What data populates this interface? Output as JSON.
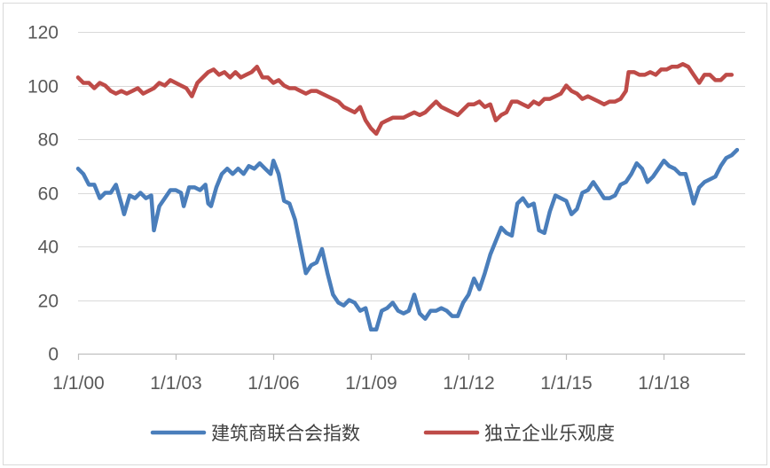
{
  "chart_data": {
    "type": "line",
    "title": "",
    "xlabel": "",
    "ylabel": "",
    "ylim": [
      0,
      120
    ],
    "yticks": [
      0,
      20,
      40,
      60,
      80,
      100,
      120
    ],
    "xlim": [
      "2000-01-01",
      "2020-07-01"
    ],
    "xtick_labels": [
      "1/1/00",
      "1/1/03",
      "1/1/06",
      "1/1/09",
      "1/1/12",
      "1/1/15",
      "1/1/18"
    ],
    "xtick_dates": [
      "2000-01-01",
      "2003-01-01",
      "2006-01-01",
      "2009-01-01",
      "2012-01-01",
      "2015-01-01",
      "2018-01-01"
    ],
    "grid": "horizontal",
    "legend_position": "bottom",
    "series": [
      {
        "name": "建筑商联合会指数",
        "color": "#4a7ebb",
        "points": [
          [
            "2000-01-01",
            69
          ],
          [
            "2000-03-01",
            67
          ],
          [
            "2000-05-01",
            63
          ],
          [
            "2000-07-01",
            63
          ],
          [
            "2000-09-01",
            58
          ],
          [
            "2000-11-01",
            60
          ],
          [
            "2001-01-01",
            60
          ],
          [
            "2001-03-01",
            63
          ],
          [
            "2001-05-01",
            56
          ],
          [
            "2001-06-01",
            52
          ],
          [
            "2001-08-01",
            59
          ],
          [
            "2001-10-01",
            58
          ],
          [
            "2001-12-01",
            60
          ],
          [
            "2002-02-01",
            58
          ],
          [
            "2002-04-01",
            59
          ],
          [
            "2002-05-01",
            46
          ],
          [
            "2002-07-01",
            55
          ],
          [
            "2002-09-01",
            58
          ],
          [
            "2002-11-01",
            61
          ],
          [
            "2003-01-01",
            61
          ],
          [
            "2003-03-01",
            60
          ],
          [
            "2003-04-01",
            55
          ],
          [
            "2003-06-01",
            62
          ],
          [
            "2003-08-01",
            62
          ],
          [
            "2003-10-01",
            61
          ],
          [
            "2003-12-01",
            63
          ],
          [
            "2004-01-01",
            56
          ],
          [
            "2004-02-01",
            55
          ],
          [
            "2004-04-01",
            62
          ],
          [
            "2004-06-01",
            67
          ],
          [
            "2004-08-01",
            69
          ],
          [
            "2004-10-01",
            67
          ],
          [
            "2004-12-01",
            69
          ],
          [
            "2005-02-01",
            67
          ],
          [
            "2005-04-01",
            70
          ],
          [
            "2005-06-01",
            69
          ],
          [
            "2005-08-01",
            71
          ],
          [
            "2005-10-01",
            69
          ],
          [
            "2005-12-01",
            67
          ],
          [
            "2006-01-01",
            72
          ],
          [
            "2006-03-01",
            67
          ],
          [
            "2006-05-01",
            57
          ],
          [
            "2006-07-01",
            56
          ],
          [
            "2006-09-01",
            50
          ],
          [
            "2006-11-01",
            40
          ],
          [
            "2007-01-01",
            30
          ],
          [
            "2007-03-01",
            33
          ],
          [
            "2007-05-01",
            34
          ],
          [
            "2007-07-01",
            39
          ],
          [
            "2007-09-01",
            30
          ],
          [
            "2007-11-01",
            22
          ],
          [
            "2008-01-01",
            19
          ],
          [
            "2008-03-01",
            18
          ],
          [
            "2008-05-01",
            20
          ],
          [
            "2008-07-01",
            19
          ],
          [
            "2008-09-01",
            16
          ],
          [
            "2008-11-01",
            17
          ],
          [
            "2009-01-01",
            9
          ],
          [
            "2009-03-01",
            9
          ],
          [
            "2009-05-01",
            16
          ],
          [
            "2009-07-01",
            17
          ],
          [
            "2009-09-01",
            19
          ],
          [
            "2009-11-01",
            16
          ],
          [
            "2010-01-01",
            15
          ],
          [
            "2010-03-01",
            16
          ],
          [
            "2010-05-01",
            22
          ],
          [
            "2010-07-01",
            15
          ],
          [
            "2010-09-01",
            13
          ],
          [
            "2010-11-01",
            16
          ],
          [
            "2011-01-01",
            16
          ],
          [
            "2011-03-01",
            17
          ],
          [
            "2011-05-01",
            16
          ],
          [
            "2011-07-01",
            14
          ],
          [
            "2011-09-01",
            14
          ],
          [
            "2011-11-01",
            19
          ],
          [
            "2012-01-01",
            22
          ],
          [
            "2012-03-01",
            28
          ],
          [
            "2012-05-01",
            24
          ],
          [
            "2012-07-01",
            30
          ],
          [
            "2012-09-01",
            37
          ],
          [
            "2012-11-01",
            42
          ],
          [
            "2013-01-01",
            47
          ],
          [
            "2013-03-01",
            45
          ],
          [
            "2013-05-01",
            44
          ],
          [
            "2013-07-01",
            56
          ],
          [
            "2013-09-01",
            58
          ],
          [
            "2013-11-01",
            55
          ],
          [
            "2014-01-01",
            56
          ],
          [
            "2014-03-01",
            46
          ],
          [
            "2014-05-01",
            45
          ],
          [
            "2014-07-01",
            53
          ],
          [
            "2014-09-01",
            59
          ],
          [
            "2014-11-01",
            58
          ],
          [
            "2015-01-01",
            57
          ],
          [
            "2015-03-01",
            52
          ],
          [
            "2015-05-01",
            54
          ],
          [
            "2015-07-01",
            60
          ],
          [
            "2015-09-01",
            61
          ],
          [
            "2015-11-01",
            64
          ],
          [
            "2016-01-01",
            61
          ],
          [
            "2016-03-01",
            58
          ],
          [
            "2016-05-01",
            58
          ],
          [
            "2016-07-01",
            59
          ],
          [
            "2016-09-01",
            63
          ],
          [
            "2016-11-01",
            64
          ],
          [
            "2017-01-01",
            67
          ],
          [
            "2017-03-01",
            71
          ],
          [
            "2017-05-01",
            69
          ],
          [
            "2017-07-01",
            64
          ],
          [
            "2017-09-01",
            66
          ],
          [
            "2017-11-01",
            69
          ],
          [
            "2018-01-01",
            72
          ],
          [
            "2018-03-01",
            70
          ],
          [
            "2018-05-01",
            69
          ],
          [
            "2018-07-01",
            67
          ],
          [
            "2018-09-01",
            67
          ],
          [
            "2018-11-01",
            60
          ],
          [
            "2018-12-01",
            56
          ],
          [
            "2019-02-01",
            62
          ],
          [
            "2019-04-01",
            64
          ],
          [
            "2019-06-01",
            65
          ],
          [
            "2019-08-01",
            66
          ],
          [
            "2019-10-01",
            70
          ],
          [
            "2019-12-01",
            73
          ],
          [
            "2020-02-01",
            74
          ],
          [
            "2020-04-01",
            76
          ]
        ]
      },
      {
        "name": "独立企业乐观度",
        "color": "#be4b48",
        "points": [
          [
            "2000-01-01",
            103
          ],
          [
            "2000-03-01",
            101
          ],
          [
            "2000-05-01",
            101
          ],
          [
            "2000-07-01",
            99
          ],
          [
            "2000-09-01",
            101
          ],
          [
            "2000-11-01",
            100
          ],
          [
            "2001-01-01",
            98
          ],
          [
            "2001-03-01",
            97
          ],
          [
            "2001-05-01",
            98
          ],
          [
            "2001-07-01",
            97
          ],
          [
            "2001-09-01",
            98
          ],
          [
            "2001-11-01",
            99
          ],
          [
            "2002-01-01",
            97
          ],
          [
            "2002-03-01",
            98
          ],
          [
            "2002-05-01",
            99
          ],
          [
            "2002-07-01",
            101
          ],
          [
            "2002-09-01",
            100
          ],
          [
            "2002-11-01",
            102
          ],
          [
            "2003-01-01",
            101
          ],
          [
            "2003-03-01",
            100
          ],
          [
            "2003-05-01",
            99
          ],
          [
            "2003-07-01",
            96
          ],
          [
            "2003-09-01",
            101
          ],
          [
            "2003-11-01",
            103
          ],
          [
            "2004-01-01",
            105
          ],
          [
            "2004-03-01",
            106
          ],
          [
            "2004-05-01",
            104
          ],
          [
            "2004-07-01",
            105
          ],
          [
            "2004-09-01",
            103
          ],
          [
            "2004-11-01",
            105
          ],
          [
            "2005-01-01",
            103
          ],
          [
            "2005-03-01",
            104
          ],
          [
            "2005-05-01",
            105
          ],
          [
            "2005-07-01",
            107
          ],
          [
            "2005-09-01",
            103
          ],
          [
            "2005-11-01",
            103
          ],
          [
            "2006-01-01",
            101
          ],
          [
            "2006-03-01",
            102
          ],
          [
            "2006-05-01",
            100
          ],
          [
            "2006-07-01",
            99
          ],
          [
            "2006-09-01",
            99
          ],
          [
            "2006-11-01",
            98
          ],
          [
            "2007-01-01",
            97
          ],
          [
            "2007-03-01",
            98
          ],
          [
            "2007-05-01",
            98
          ],
          [
            "2007-07-01",
            97
          ],
          [
            "2007-09-01",
            96
          ],
          [
            "2007-11-01",
            95
          ],
          [
            "2008-01-01",
            94
          ],
          [
            "2008-03-01",
            92
          ],
          [
            "2008-05-01",
            91
          ],
          [
            "2008-07-01",
            90
          ],
          [
            "2008-09-01",
            92
          ],
          [
            "2008-11-01",
            87
          ],
          [
            "2009-01-01",
            84
          ],
          [
            "2009-03-01",
            82
          ],
          [
            "2009-05-01",
            86
          ],
          [
            "2009-07-01",
            87
          ],
          [
            "2009-09-01",
            88
          ],
          [
            "2009-11-01",
            88
          ],
          [
            "2010-01-01",
            88
          ],
          [
            "2010-03-01",
            89
          ],
          [
            "2010-05-01",
            90
          ],
          [
            "2010-07-01",
            89
          ],
          [
            "2010-09-01",
            90
          ],
          [
            "2010-11-01",
            92
          ],
          [
            "2011-01-01",
            94
          ],
          [
            "2011-03-01",
            92
          ],
          [
            "2011-05-01",
            91
          ],
          [
            "2011-07-01",
            90
          ],
          [
            "2011-09-01",
            89
          ],
          [
            "2011-11-01",
            91
          ],
          [
            "2012-01-01",
            93
          ],
          [
            "2012-03-01",
            93
          ],
          [
            "2012-05-01",
            94
          ],
          [
            "2012-07-01",
            92
          ],
          [
            "2012-09-01",
            93
          ],
          [
            "2012-11-01",
            87
          ],
          [
            "2013-01-01",
            89
          ],
          [
            "2013-03-01",
            90
          ],
          [
            "2013-05-01",
            94
          ],
          [
            "2013-07-01",
            94
          ],
          [
            "2013-09-01",
            93
          ],
          [
            "2013-11-01",
            92
          ],
          [
            "2014-01-01",
            94
          ],
          [
            "2014-03-01",
            93
          ],
          [
            "2014-05-01",
            95
          ],
          [
            "2014-07-01",
            95
          ],
          [
            "2014-09-01",
            96
          ],
          [
            "2014-11-01",
            97
          ],
          [
            "2015-01-01",
            100
          ],
          [
            "2015-03-01",
            98
          ],
          [
            "2015-05-01",
            97
          ],
          [
            "2015-07-01",
            95
          ],
          [
            "2015-09-01",
            96
          ],
          [
            "2015-11-01",
            95
          ],
          [
            "2016-01-01",
            94
          ],
          [
            "2016-03-01",
            93
          ],
          [
            "2016-05-01",
            94
          ],
          [
            "2016-07-01",
            94
          ],
          [
            "2016-09-01",
            95
          ],
          [
            "2016-11-01",
            98
          ],
          [
            "2016-12-01",
            105
          ],
          [
            "2017-02-01",
            105
          ],
          [
            "2017-04-01",
            104
          ],
          [
            "2017-06-01",
            104
          ],
          [
            "2017-08-01",
            105
          ],
          [
            "2017-10-01",
            104
          ],
          [
            "2017-12-01",
            106
          ],
          [
            "2018-02-01",
            106
          ],
          [
            "2018-04-01",
            107
          ],
          [
            "2018-06-01",
            107
          ],
          [
            "2018-08-01",
            108
          ],
          [
            "2018-10-01",
            107
          ],
          [
            "2018-12-01",
            104
          ],
          [
            "2019-02-01",
            101
          ],
          [
            "2019-04-01",
            104
          ],
          [
            "2019-06-01",
            104
          ],
          [
            "2019-08-01",
            102
          ],
          [
            "2019-10-01",
            102
          ],
          [
            "2019-12-01",
            104
          ],
          [
            "2020-02-01",
            104
          ]
        ]
      }
    ]
  }
}
